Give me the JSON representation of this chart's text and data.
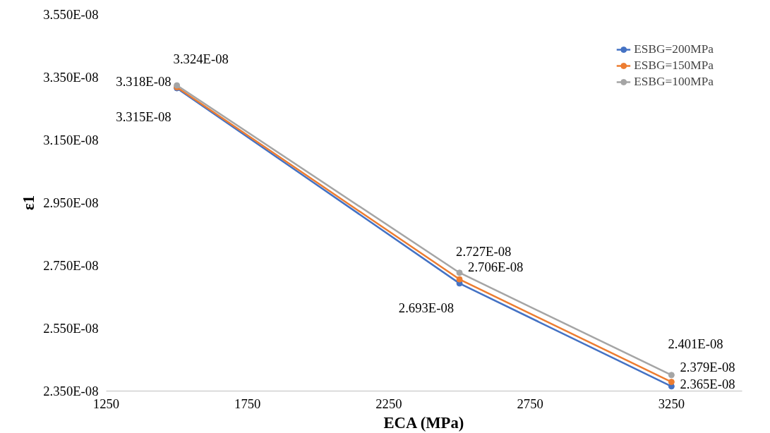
{
  "chart_data": {
    "type": "line",
    "xlabel": "ECA (MPa)",
    "ylabel": "ε1",
    "x": [
      1500,
      2500,
      3250
    ],
    "series": [
      {
        "name": "ESBG=200MPa",
        "color": "#4472c4",
        "values": [
          3.315e-08,
          2.693e-08,
          2.365e-08
        ],
        "value_labels": [
          "3.315E-08",
          "2.693E-08",
          "2.365E-08"
        ]
      },
      {
        "name": "ESBG=150MPa",
        "color": "#ed7d31",
        "values": [
          3.318e-08,
          2.706e-08,
          2.379e-08
        ],
        "value_labels": [
          "3.318E-08",
          "2.706E-08",
          "2.379E-08"
        ]
      },
      {
        "name": "ESBG=100MPa",
        "color": "#a5a5a5",
        "values": [
          3.324e-08,
          2.727e-08,
          2.401e-08
        ],
        "value_labels": [
          "3.324E-08",
          "2.727E-08",
          "2.401E-08"
        ]
      }
    ],
    "xlim": [
      1250,
      3500
    ],
    "xticks": [
      1250,
      1750,
      2250,
      2750,
      3250
    ],
    "ylim": [
      2.35e-08,
      3.55e-08
    ],
    "yticks": [
      {
        "value": 2.35e-08,
        "label": "2.350E-08"
      },
      {
        "value": 2.55e-08,
        "label": "2.550E-08"
      },
      {
        "value": 2.75e-08,
        "label": "2.750E-08"
      },
      {
        "value": 2.95e-08,
        "label": "2.950E-08"
      },
      {
        "value": 3.15e-08,
        "label": "3.150E-08"
      },
      {
        "value": 3.35e-08,
        "label": "3.350E-08"
      },
      {
        "value": 3.55e-08,
        "label": "3.550E-08"
      }
    ],
    "legend": "top right",
    "grid": false,
    "marker": "circle",
    "line_style": "solid"
  }
}
